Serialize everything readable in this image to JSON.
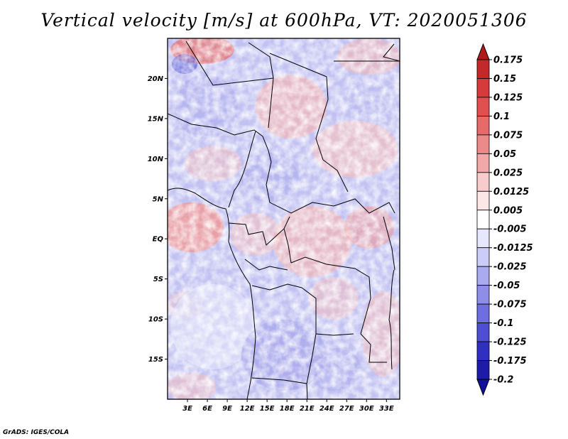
{
  "title": "Vertical velocity [m/s] at 600hPa, VT: 2020051306",
  "footer": "GrADS: IGES/COLA",
  "map": {
    "lon_range": [
      0,
      35
    ],
    "lat_range": [
      -20,
      25
    ],
    "lat_labels": [
      "20N",
      "15N",
      "10N",
      "5N",
      "EQ",
      "5S",
      "10S",
      "15S"
    ],
    "lat_values": [
      20,
      15,
      10,
      5,
      0,
      -5,
      -10,
      -15
    ],
    "lon_labels": [
      "3E",
      "6E",
      "9E",
      "12E",
      "15E",
      "18E",
      "21E",
      "24E",
      "27E",
      "30E",
      "33E"
    ],
    "lon_values": [
      3,
      6,
      9,
      12,
      15,
      18,
      21,
      24,
      27,
      30,
      33
    ]
  },
  "colorbar": {
    "labels": [
      "0.175",
      "0.15",
      "0.125",
      "0.1",
      "0.075",
      "0.05",
      "0.025",
      "0.0125",
      "0.005",
      "-0.005",
      "-0.0125",
      "-0.025",
      "-0.05",
      "-0.075",
      "-0.1",
      "-0.125",
      "-0.175",
      "-0.2"
    ],
    "colors": [
      "#b01a1a",
      "#c42828",
      "#d63a3a",
      "#e05050",
      "#e66a6a",
      "#ec8a8a",
      "#f2a8a8",
      "#f8cccc",
      "#fce6e6",
      "#ffffff",
      "#e6e6fc",
      "#ccccf8",
      "#aaaaf0",
      "#8e8ee8",
      "#6e6ee0",
      "#4e4ed2",
      "#3030c0",
      "#1c1ca8",
      "#10109a"
    ]
  }
}
